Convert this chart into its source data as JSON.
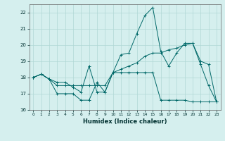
{
  "title": "",
  "xlabel": "Humidex (Indice chaleur)",
  "xlim": [
    0,
    23
  ],
  "ylim": [
    16,
    22.5
  ],
  "yticks": [
    16,
    17,
    18,
    19,
    20,
    21,
    22
  ],
  "xticks": [
    0,
    1,
    2,
    3,
    4,
    5,
    6,
    7,
    8,
    9,
    10,
    11,
    12,
    13,
    14,
    15,
    16,
    17,
    18,
    19,
    20,
    21,
    22,
    23
  ],
  "bg_color": "#d5efee",
  "grid_color": "#b0d8d5",
  "line_color": "#006868",
  "line1_y": [
    18.0,
    18.2,
    17.9,
    17.0,
    17.0,
    17.0,
    16.6,
    16.6,
    17.7,
    17.1,
    18.3,
    18.3,
    18.3,
    18.3,
    18.3,
    18.3,
    16.6,
    16.6,
    16.6,
    16.6,
    16.5,
    16.5,
    16.5,
    16.5
  ],
  "line2_y": [
    18.0,
    18.2,
    17.9,
    17.7,
    17.7,
    17.4,
    17.1,
    18.7,
    17.1,
    17.1,
    18.3,
    19.4,
    19.5,
    20.7,
    21.8,
    22.3,
    19.6,
    18.7,
    19.5,
    20.1,
    20.1,
    18.8,
    17.5,
    16.5
  ],
  "line3_y": [
    18.0,
    18.2,
    17.9,
    17.5,
    17.5,
    17.5,
    17.5,
    17.5,
    17.5,
    17.5,
    18.3,
    18.5,
    18.7,
    18.9,
    19.3,
    19.5,
    19.5,
    19.7,
    19.8,
    20.0,
    20.1,
    19.0,
    18.8,
    16.5
  ]
}
